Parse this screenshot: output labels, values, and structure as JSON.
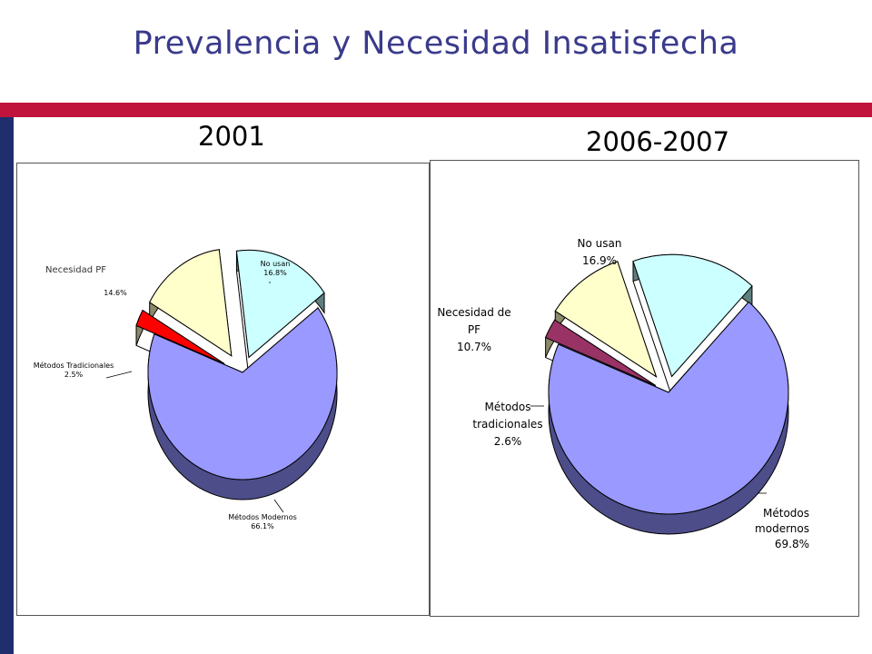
{
  "title": "Prevalencia y Necesidad Insatisfecha",
  "colors": {
    "title": "#3a3a8c",
    "accent_bar": "#c0143c",
    "side_bar": "#1f2f6e"
  },
  "chart_data": [
    {
      "type": "pie",
      "title": "2001",
      "slices": [
        {
          "label": "Métodos Modernos",
          "value": 66.1,
          "value_text": "66.1%",
          "color": "#9999ff",
          "side": "#4d4d8a"
        },
        {
          "label": "Métodos Tradicionales",
          "value": 2.5,
          "value_text": "2.5%",
          "color": "#ff0000",
          "side": "#8a8a6a"
        },
        {
          "label": "",
          "value": 14.6,
          "value_text": "14.6%",
          "color": "#ffffcc",
          "side": "#8a8a6a"
        },
        {
          "label": "No usan",
          "value": 16.8,
          "value_text": "16.8%",
          "color": "#ccffff",
          "side": "#5f7f7f"
        }
      ],
      "annotation": "Necesidad PF"
    },
    {
      "type": "pie",
      "title": "2006-2007",
      "slices": [
        {
          "label": "Métodos modernos",
          "value": 69.8,
          "value_text": "69.8%",
          "color": "#9999ff",
          "side": "#4d4d8a"
        },
        {
          "label": "Métodos tradicionales",
          "value": 2.6,
          "value_text": "2.6%",
          "color": "#993366",
          "side": "#8a8a6a"
        },
        {
          "label": "Necesidad de PF",
          "value": 10.7,
          "value_text": "10.7%",
          "color": "#ffffcc",
          "side": "#8a8a6a"
        },
        {
          "label": "No usan",
          "value": 16.9,
          "value_text": "16.9%",
          "color": "#ccffff",
          "side": "#5f7f7f"
        }
      ]
    }
  ]
}
